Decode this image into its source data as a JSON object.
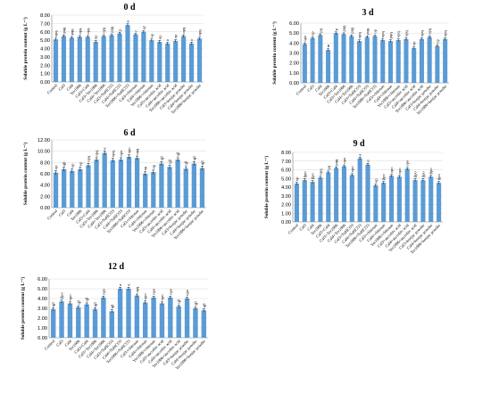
{
  "chart_data": [
    {
      "type": "bar",
      "title": "0 d",
      "ylabel": "Soluble protein content (g L⁻¹)",
      "ylim": [
        0,
        8
      ],
      "yticks": [
        "0.00",
        "1.00",
        "2.00",
        "3.00",
        "4.00",
        "5.00",
        "6.00",
        "7.00",
        "8.00"
      ],
      "categories": [
        "Control",
        "Cal3",
        "Cal4",
        "Yer1006",
        "Cal3+Cal4",
        "Cal3+Yer1006",
        "Cal4+Yer1006",
        "Cal3+NaHCO3",
        "Cal4+NaHCO3",
        "Yer1006+NaHCO3",
        "Cal3+chitosan",
        "Cal4+chitosan",
        "Yer1006+chitosan",
        "Cal3+ascorbic acid",
        "Cal4+ascorbic acid",
        "Yer1006+ascorbic acid",
        "Cal3+konjac powder",
        "Cal4+konjac powder",
        "Yer1006+konjac powder"
      ],
      "values": [
        5.1,
        5.5,
        5.3,
        5.4,
        5.4,
        4.8,
        5.5,
        5.6,
        5.8,
        6.8,
        5.7,
        6.0,
        5.0,
        4.8,
        4.6,
        4.9,
        5.5,
        4.6,
        5.2
      ],
      "errors": [
        0.15,
        0.15,
        0.15,
        0.15,
        0.15,
        0.15,
        0.15,
        0.15,
        0.15,
        0.15,
        0.15,
        0.15,
        0.15,
        0.15,
        0.15,
        0.15,
        0.15,
        0.15,
        0.15
      ],
      "labels": [
        "opq",
        "pqq",
        "pqq",
        "opq",
        "opq",
        "op",
        "opq",
        "pqq",
        "p",
        "α",
        "r",
        "qr",
        "op",
        "op",
        "o",
        "op",
        "opq",
        "o",
        "opq"
      ]
    },
    {
      "type": "bar",
      "title": "3 d",
      "ylabel": "Soluble protein content (g L⁻¹)",
      "ylim": [
        0,
        6
      ],
      "yticks": [
        "0.00",
        "1.00",
        "2.00",
        "3.00",
        "4.00",
        "5.00",
        "6.00"
      ],
      "categories": [
        "Control",
        "Cal3",
        "Cal4",
        "Yer1006",
        "Cal3+Cal4",
        "Cal3+Yer1006",
        "Cal4+Yer1006",
        "Cal3+NaHCO3",
        "Cal4+NaHCO3",
        "Yer1006+NaHCO3",
        "Cal3+chitosan",
        "Cal4+chitosan",
        "Yer1006+chitosan",
        "Cal3+ascorbic acid",
        "Cal4+ascorbic acid",
        "Yer1006+ascorbic acid",
        "Cal3+konjac powder",
        "Cal4+konjac powder",
        "Yer1006+konjac powder"
      ],
      "values": [
        3.9,
        4.5,
        4.8,
        3.3,
        5.0,
        4.9,
        4.7,
        4.2,
        4.6,
        4.7,
        4.3,
        4.2,
        4.3,
        4.4,
        3.5,
        4.4,
        4.6,
        3.7,
        4.4
      ],
      "errors": [
        0.12,
        0.12,
        0.12,
        0.12,
        0.12,
        0.12,
        0.12,
        0.12,
        0.12,
        0.12,
        0.12,
        0.12,
        0.12,
        0.12,
        0.12,
        0.12,
        0.12,
        0.12,
        0.12
      ],
      "labels": [
        "opo",
        "op",
        "pq",
        "m",
        "p",
        "pqq",
        "pqq",
        "opq",
        "pqq",
        "op",
        "opq",
        "pqq",
        "opq",
        "opq",
        "op",
        "opq",
        "opq",
        "op",
        "opq"
      ]
    },
    {
      "type": "bar",
      "title": "6 d",
      "ylabel": "Soluble protein content (g L⁻¹)",
      "ylim": [
        0,
        12
      ],
      "yticks": [
        "0.00",
        "2.00",
        "4.00",
        "6.00",
        "8.00",
        "10.00",
        "12.00"
      ],
      "categories": [
        "Control",
        "Cal3",
        "Cal4",
        "Yer1006",
        "Cal3+Cal4",
        "Cal3+Yer1006",
        "Cal4+Yer1006",
        "Cal3+NaHCO3",
        "Cal4+NaHCO3",
        "Yer1006+NaHCO3",
        "Cal3+chitosan",
        "Cal4+chitosan",
        "Yer1006+chitosan",
        "Cal3+ascorbic acid",
        "Cal4+ascorbic acid",
        "Yer1006+ascorbic acid",
        "Cal3+konjac powder",
        "Cal4+konjac powder",
        "Yer1006+konjac powder"
      ],
      "values": [
        6.2,
        6.8,
        6.5,
        6.8,
        7.5,
        8.5,
        9.7,
        8.4,
        8.5,
        9.0,
        8.8,
        6.0,
        6.3,
        7.8,
        7.2,
        8.5,
        6.9,
        7.8,
        7.0
      ],
      "errors": [
        0.35,
        0.35,
        0.35,
        0.35,
        0.35,
        0.35,
        0.35,
        0.35,
        0.35,
        0.35,
        0.35,
        0.35,
        0.35,
        0.35,
        0.35,
        0.35,
        0.35,
        0.35,
        0.35
      ],
      "labels": [
        "op",
        "qβ",
        "op",
        "op",
        "opq",
        "opq",
        "α",
        "opq",
        "opo",
        "opo",
        "opq",
        "op",
        "op",
        "qβ",
        "qβ",
        "qβ",
        "qβ",
        "qβ",
        "qβ"
      ]
    },
    {
      "type": "bar",
      "title": "9 d",
      "ylabel": "Soluble protein content (g L⁻¹)",
      "ylim": [
        0,
        8
      ],
      "yticks": [
        "0.00",
        "1.00",
        "2.00",
        "3.00",
        "4.00",
        "5.00",
        "6.00",
        "7.00",
        "8.00"
      ],
      "categories": [
        "Control",
        "Cal3",
        "Cal4",
        "Yer1006",
        "Cal3+Cal4",
        "Cal3+Yer1006",
        "Cal4+Yer1006",
        "Cal3+NaHCO3",
        "Cal4+NaHCO3",
        "Yer1006+NaHCO3",
        "Cal3+chitosan",
        "Cal4+chitosan",
        "Yer1006+chitosan",
        "Cal3+ascorbic acid",
        "Cal4+ascorbic acid",
        "Yer1006+ascorbic acid",
        "Cal3+konjac powder",
        "Cal4+konjac powder",
        "Yer1006+konjac powder"
      ],
      "values": [
        4.4,
        4.8,
        4.6,
        5.1,
        5.7,
        6.2,
        6.4,
        5.4,
        7.3,
        6.6,
        4.2,
        4.5,
        5.3,
        5.2,
        6.1,
        4.8,
        4.8,
        5.2,
        4.5
      ],
      "errors": [
        0.15,
        0.15,
        0.15,
        0.15,
        0.15,
        0.15,
        0.15,
        0.15,
        0.15,
        0.15,
        0.15,
        0.15,
        0.15,
        0.15,
        0.15,
        0.15,
        0.15,
        0.15,
        0.15
      ],
      "labels": [
        "op",
        "βpo",
        "βpo",
        "opq",
        "pq",
        "pqq",
        "opo",
        "opo",
        "α",
        "α",
        "op",
        "βpo",
        "opo",
        "opo",
        "opo",
        "βpo",
        "βpo",
        "βpo",
        "βpo"
      ]
    },
    {
      "type": "bar",
      "title": "12 d",
      "ylabel": "Soluble protein content (g L⁻¹)",
      "ylim": [
        0,
        6
      ],
      "yticks": [
        "0.00",
        "1.00",
        "2.00",
        "3.00",
        "4.00",
        "5.00",
        "6.00"
      ],
      "categories": [
        "Control",
        "Cal3",
        "Cal4",
        "Yer1006",
        "Cal3+Cal4",
        "Cal3+Yer1006",
        "Cal4+Yer1006",
        "Cal3+NaHCO3",
        "Cal4+NaHCO3",
        "Yer1006+NaHCO3",
        "Cal3+chitosan",
        "Cal4+chitosan",
        "Yer1006+chitosan",
        "Cal3+ascorbic acid",
        "Cal4+ascorbic acid",
        "Yer1006+ascorbic acid",
        "Cal3+konjac powder",
        "Cal4+konjac powder",
        "Yer1006+konjac powder"
      ],
      "values": [
        2.9,
        3.7,
        3.5,
        3.1,
        3.4,
        2.9,
        4.1,
        2.7,
        5.0,
        5.0,
        4.3,
        3.6,
        4.1,
        3.5,
        4.1,
        3.2,
        4.0,
        3.0,
        2.8
      ],
      "errors": [
        0.15,
        0.15,
        0.15,
        0.15,
        0.15,
        0.15,
        0.15,
        0.15,
        0.15,
        0.15,
        0.15,
        0.15,
        0.15,
        0.15,
        0.15,
        0.15,
        0.15,
        0.15,
        0.15
      ],
      "labels": [
        "qβ",
        "βpo",
        "opo",
        "qβ",
        "qβ",
        "qβ",
        "opo",
        "qβ",
        "α",
        "α",
        "opq",
        "opo",
        "opo",
        "opo",
        "opo",
        "qβ",
        "opo",
        "qβ",
        "qβ"
      ]
    }
  ]
}
